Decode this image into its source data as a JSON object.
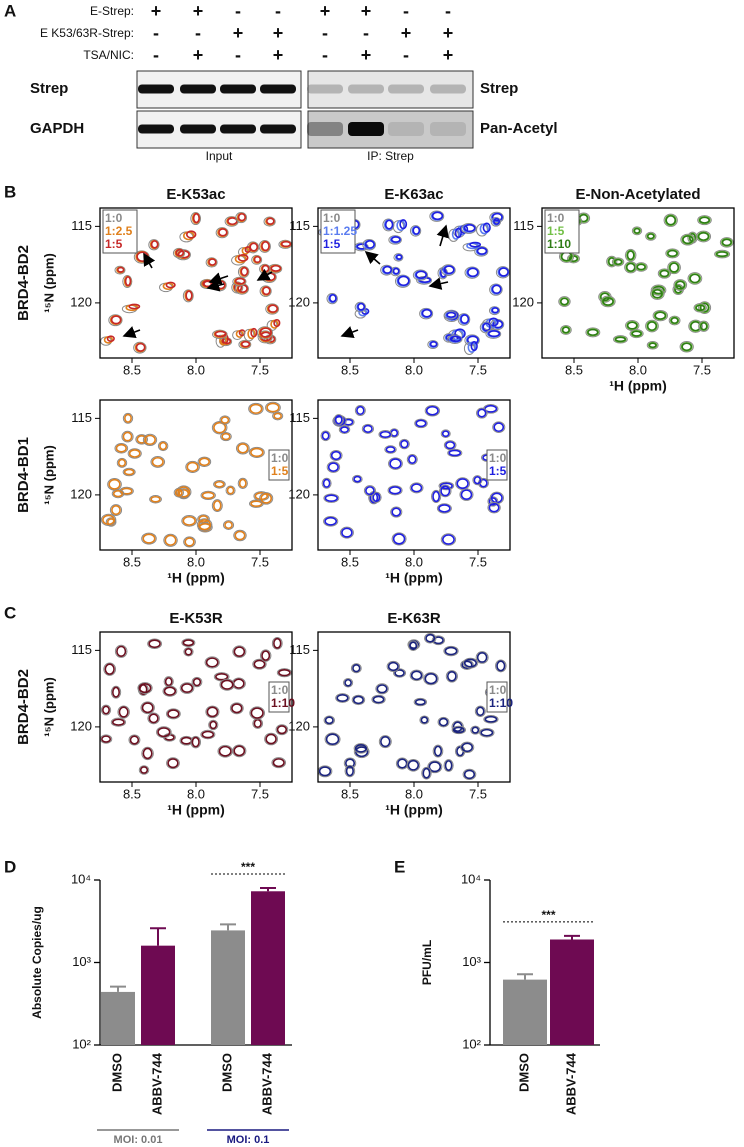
{
  "panel_a": {
    "panel_label": "A",
    "conditions": [
      {
        "label": "E-Strep:",
        "signs": [
          "+",
          "+",
          "-",
          "-",
          "+",
          "+",
          "-",
          "-"
        ]
      },
      {
        "label": "E K53/63R-Strep:",
        "signs": [
          "-",
          "-",
          "+",
          "+",
          "-",
          "-",
          "+",
          "+"
        ]
      },
      {
        "label": "TSA/NIC:",
        "signs": [
          "-",
          "+",
          "-",
          "+",
          "-",
          "+",
          "-",
          "+"
        ]
      }
    ],
    "left_blot": {
      "rows": [
        "Strep",
        "GAPDH"
      ],
      "caption": "Input"
    },
    "right_blot": {
      "rows": [
        "Strep",
        "Pan-Acetyl"
      ],
      "caption": "IP: Strep"
    }
  },
  "nmr_axes": {
    "xlim": [
      8.75,
      7.25
    ],
    "ylim": [
      113.8,
      123.6
    ],
    "xticks": [
      8.5,
      {
        "value": 8,
        "label": "8.0"
      },
      7.5
    ],
    "yticks": [
      115,
      120
    ],
    "x_label": "¹H (ppm)",
    "y_label": "¹⁵N (ppm)"
  },
  "panel_b": {
    "panel_label": "B",
    "plots": [
      {
        "title": "E-K53ac",
        "row_label": "BRD4-BD2",
        "legend": [
          {
            "label": "1:0",
            "color": "#8a8a8a"
          },
          {
            "label": "1:2.5",
            "color": "#e0801c"
          },
          {
            "label": "1:5",
            "color": "#c62828"
          }
        ]
      },
      {
        "title": "E-K63ac",
        "legend": [
          {
            "label": "1:0",
            "color": "#8a8a8a"
          },
          {
            "label": "1:1.25",
            "color": "#5a7cf0"
          },
          {
            "label": "1:5",
            "color": "#1f1fe0"
          }
        ]
      },
      {
        "title": "E-Non-Acetylated",
        "legend": [
          {
            "label": "1:0",
            "color": "#8a8a8a"
          },
          {
            "label": "1:5",
            "color": "#72c046"
          },
          {
            "label": "1:10",
            "color": "#2f7d16"
          }
        ]
      },
      {
        "row_label": "BRD4-BD1",
        "legend": [
          {
            "label": "1:0",
            "color": "#8a8a8a"
          },
          {
            "label": "1:5",
            "color": "#e0801c"
          }
        ]
      },
      {
        "legend": [
          {
            "label": "1:0",
            "color": "#8a8a8a"
          },
          {
            "label": "1:5",
            "color": "#1f1fe0"
          }
        ]
      }
    ]
  },
  "panel_c": {
    "panel_label": "C",
    "plots": [
      {
        "title": "E-K53R",
        "row_label": "BRD4-BD2",
        "legend": [
          {
            "label": "1:0",
            "color": "#8a8a8a"
          },
          {
            "label": "1:10",
            "color": "#6b1020"
          }
        ]
      },
      {
        "title": "E-K63R",
        "legend": [
          {
            "label": "1:0",
            "color": "#8a8a8a"
          },
          {
            "label": "1:10",
            "color": "#1a237e"
          }
        ]
      }
    ]
  },
  "chart_data": [
    {
      "type": "bar",
      "panel_label": "D",
      "y_label": "Absolute Copies/ug",
      "categories": [
        "DMSO",
        "ABBV-744",
        "DMSO",
        "ABBV-744"
      ],
      "values": [
        440,
        1600,
        2450,
        7300
      ],
      "errors": [
        70,
        1000,
        450,
        700
      ],
      "colors": [
        "#8c8c8c",
        "#6e0a52",
        "#8c8c8c",
        "#6e0a52"
      ],
      "log_scale": true,
      "ylim": [
        100,
        10000
      ],
      "yticks": [
        {
          "value": 100,
          "label": "10²"
        },
        {
          "value": 1000,
          "label": "10³"
        },
        {
          "value": 10000,
          "label": "10⁴"
        }
      ],
      "groups": [
        {
          "label": "MOI: 0.01",
          "color": "#777777",
          "categories": [
            0,
            1
          ]
        },
        {
          "label": "MOI: 0.1",
          "color": "#1a1a80",
          "categories": [
            2,
            3
          ]
        }
      ],
      "annotations": [
        {
          "text": "***",
          "categories": [
            2,
            3
          ]
        }
      ]
    },
    {
      "type": "bar",
      "panel_label": "E",
      "y_label": "PFU/mL",
      "categories": [
        "DMSO",
        "ABBV-744"
      ],
      "values": [
        620,
        1900
      ],
      "errors": [
        100,
        200
      ],
      "colors": [
        "#8c8c8c",
        "#6e0a52"
      ],
      "log_scale": true,
      "ylim": [
        100,
        10000
      ],
      "yticks": [
        {
          "value": 100,
          "label": "10²"
        },
        {
          "value": 1000,
          "label": "10³"
        },
        {
          "value": 10000,
          "label": "10⁴"
        }
      ],
      "annotations": [
        {
          "text": "***",
          "categories": [
            0,
            1
          ]
        }
      ]
    }
  ]
}
